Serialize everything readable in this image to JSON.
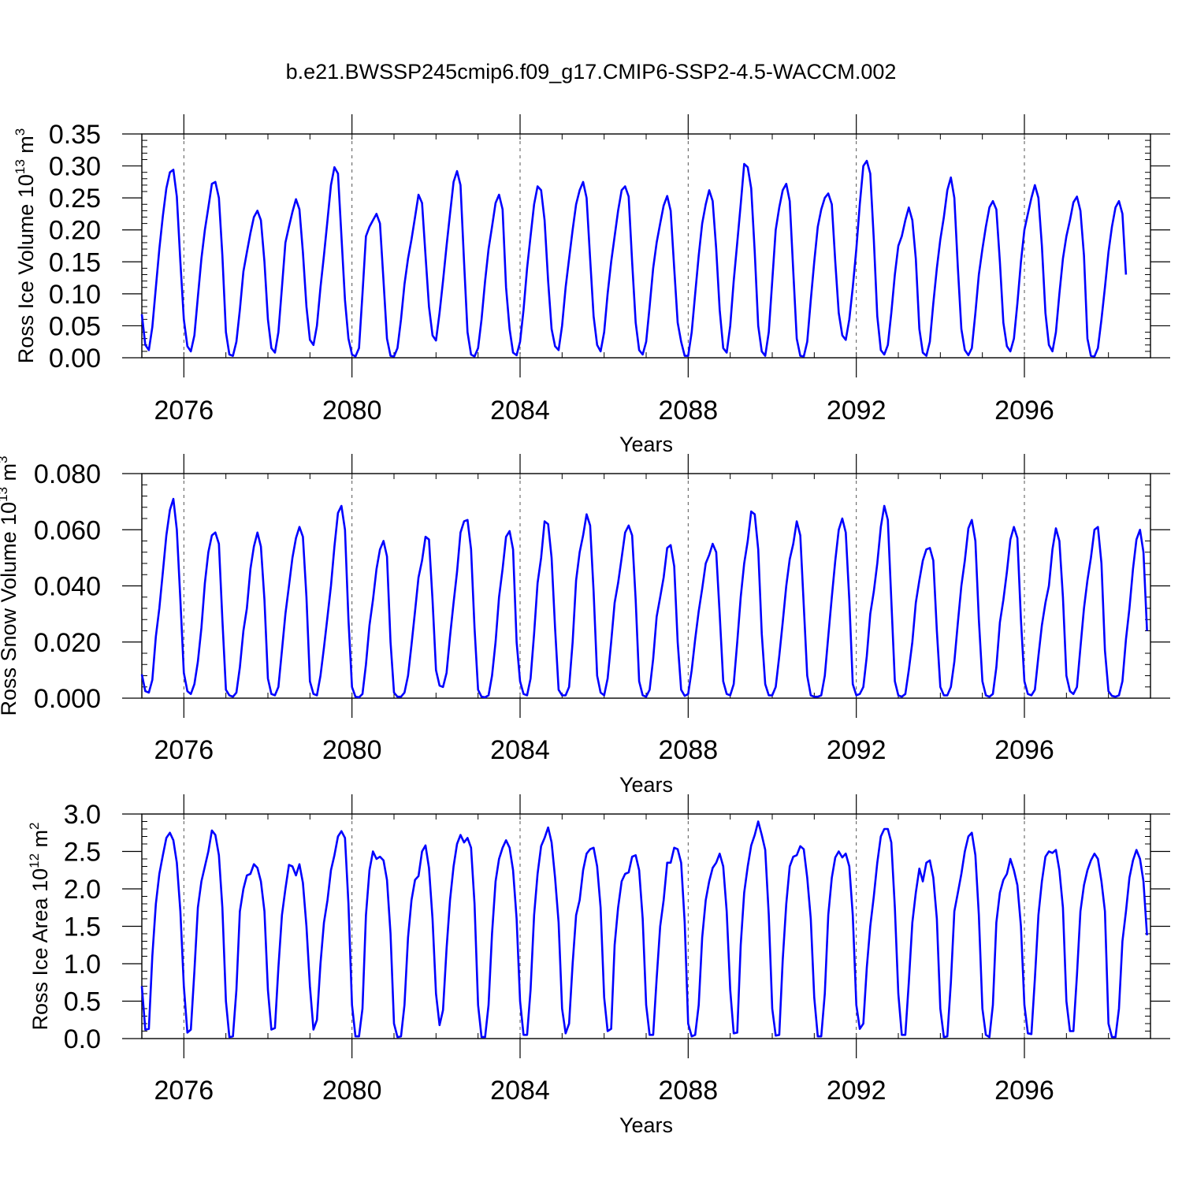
{
  "title": "b.e21.BWSSP245cmip6.f09_g17.CMIP6-SSP2-4.5-WACCM.002",
  "line_color": "#0000ff",
  "chart_data": [
    {
      "type": "line",
      "ylabel": {
        "text": "Ross Ice Volume 10",
        "exp": "13",
        "unit": " m",
        "unit_exp": "3"
      },
      "xlabel": "Years",
      "xlim": [
        2075,
        2099
      ],
      "ylim": [
        0,
        0.35
      ],
      "yticks": [
        0.0,
        0.05,
        0.1,
        0.15,
        0.2,
        0.25,
        0.3,
        0.35
      ],
      "ytick_labels": [
        "0.00",
        "0.05",
        "0.10",
        "0.15",
        "0.20",
        "0.25",
        "0.30",
        "0.35"
      ],
      "xticks": [
        2076,
        2080,
        2084,
        2088,
        2092,
        2096
      ],
      "xtick_labels": [
        "2076",
        "2080",
        "2084",
        "2088",
        "2092",
        "2096"
      ],
      "series": [
        {
          "start_year": 2075,
          "interval": "monthly",
          "values": [
            0.068,
            0.02,
            0.012,
            0.048,
            0.11,
            0.17,
            0.222,
            0.265,
            0.29,
            0.294,
            0.252,
            0.15,
            0.06,
            0.018,
            0.01,
            0.035,
            0.095,
            0.155,
            0.2,
            0.235,
            0.272,
            0.275,
            0.25,
            0.16,
            0.04,
            0.005,
            0.003,
            0.025,
            0.075,
            0.135,
            0.165,
            0.195,
            0.22,
            0.23,
            0.215,
            0.15,
            0.06,
            0.015,
            0.008,
            0.04,
            0.11,
            0.18,
            0.205,
            0.228,
            0.248,
            0.232,
            0.165,
            0.08,
            0.028,
            0.02,
            0.05,
            0.11,
            0.16,
            0.215,
            0.27,
            0.298,
            0.288,
            0.19,
            0.09,
            0.03,
            0.005,
            0.002,
            0.015,
            0.1,
            0.19,
            0.205,
            0.215,
            0.225,
            0.21,
            0.12,
            0.03,
            0.003,
            0.002,
            0.015,
            0.06,
            0.115,
            0.155,
            0.185,
            0.22,
            0.255,
            0.242,
            0.16,
            0.08,
            0.035,
            0.027,
            0.07,
            0.12,
            0.175,
            0.225,
            0.275,
            0.292,
            0.27,
            0.15,
            0.04,
            0.005,
            0.002,
            0.015,
            0.06,
            0.12,
            0.17,
            0.205,
            0.242,
            0.255,
            0.232,
            0.11,
            0.045,
            0.008,
            0.004,
            0.025,
            0.075,
            0.14,
            0.19,
            0.24,
            0.268,
            0.262,
            0.215,
            0.12,
            0.045,
            0.018,
            0.012,
            0.05,
            0.11,
            0.155,
            0.2,
            0.24,
            0.262,
            0.275,
            0.25,
            0.155,
            0.065,
            0.02,
            0.01,
            0.04,
            0.1,
            0.15,
            0.19,
            0.23,
            0.262,
            0.268,
            0.252,
            0.15,
            0.055,
            0.012,
            0.005,
            0.025,
            0.08,
            0.14,
            0.18,
            0.21,
            0.238,
            0.253,
            0.23,
            0.14,
            0.055,
            0.025,
            0.003,
            0.003,
            0.04,
            0.1,
            0.16,
            0.21,
            0.24,
            0.262,
            0.245,
            0.17,
            0.075,
            0.015,
            0.008,
            0.05,
            0.12,
            0.18,
            0.24,
            0.303,
            0.298,
            0.265,
            0.165,
            0.05,
            0.01,
            0.003,
            0.04,
            0.12,
            0.2,
            0.235,
            0.262,
            0.272,
            0.245,
            0.135,
            0.03,
            0.003,
            0.002,
            0.025,
            0.09,
            0.15,
            0.205,
            0.232,
            0.25,
            0.257,
            0.24,
            0.15,
            0.07,
            0.035,
            0.028,
            0.06,
            0.11,
            0.17,
            0.24,
            0.3,
            0.308,
            0.288,
            0.185,
            0.065,
            0.012,
            0.005,
            0.02,
            0.07,
            0.13,
            0.175,
            0.19,
            0.215,
            0.235,
            0.215,
            0.155,
            0.045,
            0.008,
            0.003,
            0.025,
            0.085,
            0.14,
            0.185,
            0.22,
            0.262,
            0.282,
            0.25,
            0.14,
            0.045,
            0.012,
            0.004,
            0.015,
            0.07,
            0.13,
            0.17,
            0.205,
            0.235,
            0.245,
            0.232,
            0.15,
            0.055,
            0.018,
            0.01,
            0.03,
            0.085,
            0.15,
            0.2,
            0.225,
            0.25,
            0.27,
            0.25,
            0.175,
            0.07,
            0.02,
            0.01,
            0.04,
            0.1,
            0.155,
            0.19,
            0.215,
            0.243,
            0.252,
            0.23,
            0.16,
            0.03,
            0.003,
            0.002,
            0.015,
            0.06,
            0.11,
            0.165,
            0.205,
            0.235,
            0.245,
            0.225,
            0.13
          ]
        }
      ]
    },
    {
      "type": "line",
      "ylabel": {
        "text": "Ross Snow Volume 10",
        "exp": "13",
        "unit": " m",
        "unit_exp": "3"
      },
      "xlabel": "Years",
      "xlim": [
        2075,
        2099
      ],
      "ylim": [
        0,
        0.08
      ],
      "yticks": [
        0.0,
        0.02,
        0.04,
        0.06,
        0.08
      ],
      "ytick_labels": [
        "0.000",
        "0.020",
        "0.040",
        "0.060",
        "0.080"
      ],
      "xticks": [
        2076,
        2080,
        2084,
        2088,
        2092,
        2096
      ],
      "xtick_labels": [
        "2076",
        "2080",
        "2084",
        "2088",
        "2092",
        "2096"
      ],
      "series": [
        {
          "start_year": 2075,
          "interval": "monthly",
          "values": [
            0.0085,
            0.0025,
            0.002,
            0.0065,
            0.022,
            0.032,
            0.045,
            0.058,
            0.067,
            0.071,
            0.06,
            0.035,
            0.009,
            0.0025,
            0.0015,
            0.005,
            0.013,
            0.025,
            0.041,
            0.052,
            0.058,
            0.059,
            0.055,
            0.028,
            0.003,
            0.001,
            0.0005,
            0.002,
            0.011,
            0.024,
            0.032,
            0.046,
            0.054,
            0.059,
            0.054,
            0.035,
            0.007,
            0.0015,
            0.001,
            0.004,
            0.017,
            0.03,
            0.04,
            0.05,
            0.057,
            0.061,
            0.0575,
            0.036,
            0.006,
            0.0015,
            0.001,
            0.008,
            0.018,
            0.029,
            0.04,
            0.054,
            0.066,
            0.0685,
            0.06,
            0.028,
            0.004,
            0.0005,
            0.0003,
            0.0015,
            0.012,
            0.026,
            0.035,
            0.046,
            0.053,
            0.056,
            0.0505,
            0.02,
            0.002,
            0.0005,
            0.0005,
            0.002,
            0.008,
            0.019,
            0.031,
            0.043,
            0.049,
            0.0575,
            0.0565,
            0.035,
            0.01,
            0.0045,
            0.004,
            0.009,
            0.022,
            0.034,
            0.045,
            0.059,
            0.063,
            0.0635,
            0.053,
            0.025,
            0.003,
            0.0005,
            0.0003,
            0.001,
            0.008,
            0.02,
            0.036,
            0.046,
            0.0575,
            0.0595,
            0.053,
            0.02,
            0.006,
            0.0015,
            0.001,
            0.007,
            0.023,
            0.041,
            0.05,
            0.063,
            0.062,
            0.05,
            0.025,
            0.003,
            0.001,
            0.001,
            0.004,
            0.02,
            0.042,
            0.052,
            0.058,
            0.0655,
            0.0615,
            0.038,
            0.008,
            0.002,
            0.001,
            0.007,
            0.02,
            0.034,
            0.041,
            0.05,
            0.059,
            0.0615,
            0.058,
            0.035,
            0.006,
            0.001,
            0.0005,
            0.003,
            0.014,
            0.029,
            0.036,
            0.043,
            0.0535,
            0.0545,
            0.047,
            0.02,
            0.003,
            0.0008,
            0.0015,
            0.01,
            0.021,
            0.031,
            0.039,
            0.048,
            0.051,
            0.055,
            0.052,
            0.03,
            0.006,
            0.0015,
            0.001,
            0.005,
            0.02,
            0.036,
            0.048,
            0.056,
            0.0665,
            0.0655,
            0.053,
            0.023,
            0.005,
            0.001,
            0.001,
            0.004,
            0.015,
            0.027,
            0.04,
            0.0495,
            0.055,
            0.063,
            0.058,
            0.033,
            0.008,
            0.001,
            0.0005,
            0.0005,
            0.001,
            0.008,
            0.022,
            0.036,
            0.049,
            0.06,
            0.064,
            0.059,
            0.035,
            0.005,
            0.001,
            0.0015,
            0.004,
            0.015,
            0.03,
            0.038,
            0.048,
            0.061,
            0.0685,
            0.0635,
            0.035,
            0.006,
            0.001,
            0.0005,
            0.0015,
            0.01,
            0.02,
            0.034,
            0.042,
            0.049,
            0.053,
            0.0535,
            0.049,
            0.024,
            0.004,
            0.001,
            0.001,
            0.004,
            0.013,
            0.027,
            0.04,
            0.049,
            0.0605,
            0.0635,
            0.056,
            0.028,
            0.006,
            0.001,
            0.0005,
            0.0015,
            0.011,
            0.027,
            0.035,
            0.045,
            0.0565,
            0.061,
            0.057,
            0.028,
            0.006,
            0.0015,
            0.001,
            0.003,
            0.015,
            0.026,
            0.034,
            0.04,
            0.053,
            0.0605,
            0.056,
            0.036,
            0.008,
            0.0025,
            0.0015,
            0.004,
            0.018,
            0.032,
            0.042,
            0.05,
            0.06,
            0.061,
            0.048,
            0.017,
            0.0025,
            0.0008,
            0.0005,
            0.001,
            0.006,
            0.021,
            0.032,
            0.046,
            0.0565,
            0.06,
            0.052,
            0.024
          ]
        }
      ]
    },
    {
      "type": "line",
      "ylabel": {
        "text": "Ross Ice Area 10",
        "exp": "12",
        "unit": " m",
        "unit_exp": "2"
      },
      "xlabel": "Years",
      "xlim": [
        2075,
        2099
      ],
      "ylim": [
        0,
        3.0
      ],
      "yticks": [
        0.0,
        0.5,
        1.0,
        1.5,
        2.0,
        2.5,
        3.0
      ],
      "ytick_labels": [
        "0.0",
        "0.5",
        "1.0",
        "1.5",
        "2.0",
        "2.5",
        "3.0"
      ],
      "xticks": [
        2076,
        2080,
        2084,
        2088,
        2092,
        2096
      ],
      "xtick_labels": [
        "2076",
        "2080",
        "2084",
        "2088",
        "2092",
        "2096"
      ],
      "series": [
        {
          "start_year": 2075,
          "interval": "monthly",
          "values": [
            0.7,
            0.12,
            0.13,
            1.1,
            1.8,
            2.2,
            2.45,
            2.68,
            2.75,
            2.65,
            2.35,
            1.7,
            0.7,
            0.08,
            0.12,
            0.9,
            1.75,
            2.1,
            2.3,
            2.5,
            2.78,
            2.72,
            2.45,
            1.75,
            0.5,
            0.02,
            0.03,
            0.65,
            1.7,
            2.0,
            2.18,
            2.2,
            2.33,
            2.28,
            2.1,
            1.7,
            0.65,
            0.12,
            0.14,
            0.95,
            1.65,
            2.0,
            2.32,
            2.3,
            2.18,
            2.33,
            2.08,
            1.5,
            0.7,
            0.12,
            0.25,
            1.0,
            1.55,
            1.85,
            2.25,
            2.45,
            2.7,
            2.77,
            2.68,
            1.8,
            0.45,
            0.03,
            0.03,
            0.4,
            1.65,
            2.25,
            2.5,
            2.4,
            2.43,
            2.38,
            2.12,
            1.4,
            0.2,
            0.02,
            0.03,
            0.45,
            1.35,
            1.85,
            2.12,
            2.17,
            2.5,
            2.58,
            2.28,
            1.6,
            0.6,
            0.18,
            0.38,
            1.2,
            1.85,
            2.3,
            2.6,
            2.72,
            2.62,
            2.68,
            2.55,
            1.8,
            0.45,
            0.02,
            0.02,
            0.45,
            1.4,
            2.1,
            2.4,
            2.55,
            2.65,
            2.55,
            2.25,
            1.6,
            0.5,
            0.05,
            0.05,
            0.65,
            1.65,
            2.2,
            2.57,
            2.68,
            2.82,
            2.62,
            2.15,
            1.55,
            0.4,
            0.07,
            0.2,
            1.0,
            1.65,
            1.85,
            2.25,
            2.47,
            2.53,
            2.55,
            2.3,
            1.75,
            0.55,
            0.1,
            0.13,
            1.25,
            1.75,
            2.1,
            2.2,
            2.22,
            2.43,
            2.45,
            2.25,
            1.6,
            0.45,
            0.05,
            0.05,
            0.8,
            1.5,
            1.85,
            2.35,
            2.35,
            2.55,
            2.53,
            2.35,
            1.55,
            0.2,
            0.03,
            0.05,
            0.45,
            1.35,
            1.85,
            2.1,
            2.28,
            2.35,
            2.47,
            2.3,
            1.7,
            0.65,
            0.07,
            0.08,
            1.25,
            1.95,
            2.3,
            2.58,
            2.72,
            2.9,
            2.72,
            2.52,
            1.65,
            0.4,
            0.04,
            0.05,
            1.05,
            1.8,
            2.3,
            2.43,
            2.45,
            2.57,
            2.53,
            2.15,
            1.6,
            0.55,
            0.03,
            0.03,
            0.6,
            1.65,
            2.15,
            2.42,
            2.5,
            2.42,
            2.47,
            2.3,
            1.65,
            0.45,
            0.13,
            0.2,
            0.95,
            1.5,
            1.9,
            2.35,
            2.7,
            2.8,
            2.8,
            2.62,
            1.75,
            0.6,
            0.05,
            0.05,
            0.75,
            1.55,
            1.95,
            2.27,
            2.1,
            2.35,
            2.38,
            2.15,
            1.6,
            0.4,
            0.02,
            0.03,
            0.75,
            1.7,
            1.95,
            2.2,
            2.5,
            2.7,
            2.75,
            2.45,
            1.65,
            0.4,
            0.05,
            0.02,
            0.45,
            1.55,
            1.95,
            2.12,
            2.2,
            2.4,
            2.25,
            2.05,
            1.5,
            0.45,
            0.07,
            0.06,
            0.8,
            1.65,
            2.1,
            2.43,
            2.5,
            2.48,
            2.52,
            2.25,
            1.75,
            0.5,
            0.1,
            0.1,
            0.85,
            1.7,
            2.05,
            2.25,
            2.38,
            2.47,
            2.4,
            2.1,
            1.7,
            0.2,
            0.02,
            0.02,
            0.4,
            1.3,
            1.7,
            2.15,
            2.38,
            2.52,
            2.4,
            2.1,
            1.38
          ]
        }
      ]
    }
  ]
}
